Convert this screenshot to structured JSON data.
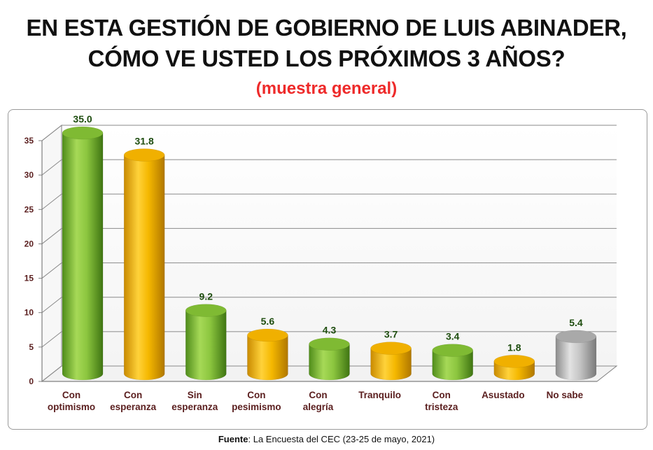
{
  "header": {
    "title_line1": "EN ESTA GESTIÓN DE GOBIERNO DE LUIS ABINADER,",
    "title_line2": "CÓMO VE USTED LOS PRÓXIMOS 3 AÑOS?",
    "subtitle": "(muestra general)"
  },
  "footer": {
    "source_label": "Fuente",
    "source_text": ": La Encuesta del CEC (23-25 de mayo, 2021)"
  },
  "colors": {
    "subtitle": "#ee2a2a",
    "green": "#8cc63f",
    "yellow": "#f5b800",
    "gray": "#b4b4b4",
    "value_label": "#1e4d0f",
    "axis_label": "#5a1e1e"
  },
  "chart_data": {
    "type": "bar",
    "style": "3d-cylinder",
    "categories": [
      [
        "Con",
        "optimismo"
      ],
      [
        "Con",
        "esperanza"
      ],
      [
        "Sin",
        "esperanza"
      ],
      [
        "Con",
        "pesimismo"
      ],
      [
        "Con",
        "alegría"
      ],
      [
        "Tranquilo"
      ],
      [
        "Con",
        "tristeza"
      ],
      [
        "Asustado"
      ],
      [
        "No sabe"
      ]
    ],
    "values": [
      35.0,
      31.8,
      9.2,
      5.6,
      4.3,
      3.7,
      3.4,
      1.8,
      5.4
    ],
    "value_labels": [
      "35.0",
      "31.8",
      "9.2",
      "5.6",
      "4.3",
      "3.7",
      "3.4",
      "1.8",
      "5.4"
    ],
    "bar_colors": [
      "green",
      "yellow",
      "green",
      "yellow",
      "green",
      "yellow",
      "green",
      "yellow",
      "gray"
    ],
    "ylim": [
      0,
      35
    ],
    "yticks": [
      0,
      5,
      10,
      15,
      20,
      25,
      30,
      35
    ],
    "grid": true,
    "legend": "none"
  }
}
